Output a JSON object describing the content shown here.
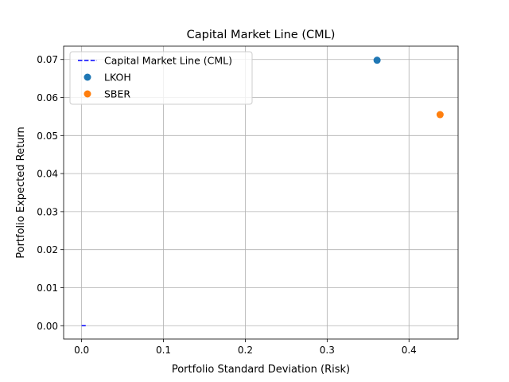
{
  "chart_data": {
    "type": "scatter",
    "title": "Capital Market Line (CML)",
    "xlabel": "Portfolio Standard Deviation (Risk)",
    "ylabel": "Portfolio Expected Return",
    "xlim": [
      -0.022,
      0.46
    ],
    "ylim": [
      -0.0035,
      0.0735
    ],
    "xticks": [
      0.0,
      0.1,
      0.2,
      0.3,
      0.4
    ],
    "xtick_labels": [
      "0.0",
      "0.1",
      "0.2",
      "0.3",
      "0.4"
    ],
    "yticks": [
      0.0,
      0.01,
      0.02,
      0.03,
      0.04,
      0.05,
      0.06,
      0.07
    ],
    "ytick_labels": [
      "0.00",
      "0.01",
      "0.02",
      "0.03",
      "0.04",
      "0.05",
      "0.06",
      "0.07"
    ],
    "grid": true,
    "legend_position": "top-left",
    "line": {
      "name": "Capital Market Line (CML)",
      "style": "dashed",
      "color": "#0000ff",
      "x": [
        0.0,
        0.005
      ],
      "y": [
        0.0,
        0.0
      ]
    },
    "series": [
      {
        "name": "LKOH",
        "color": "#1f77b4",
        "x": [
          0.361
        ],
        "y": [
          0.0698
        ]
      },
      {
        "name": "SBER",
        "color": "#ff7f0e",
        "x": [
          0.438
        ],
        "y": [
          0.0555
        ]
      }
    ]
  }
}
